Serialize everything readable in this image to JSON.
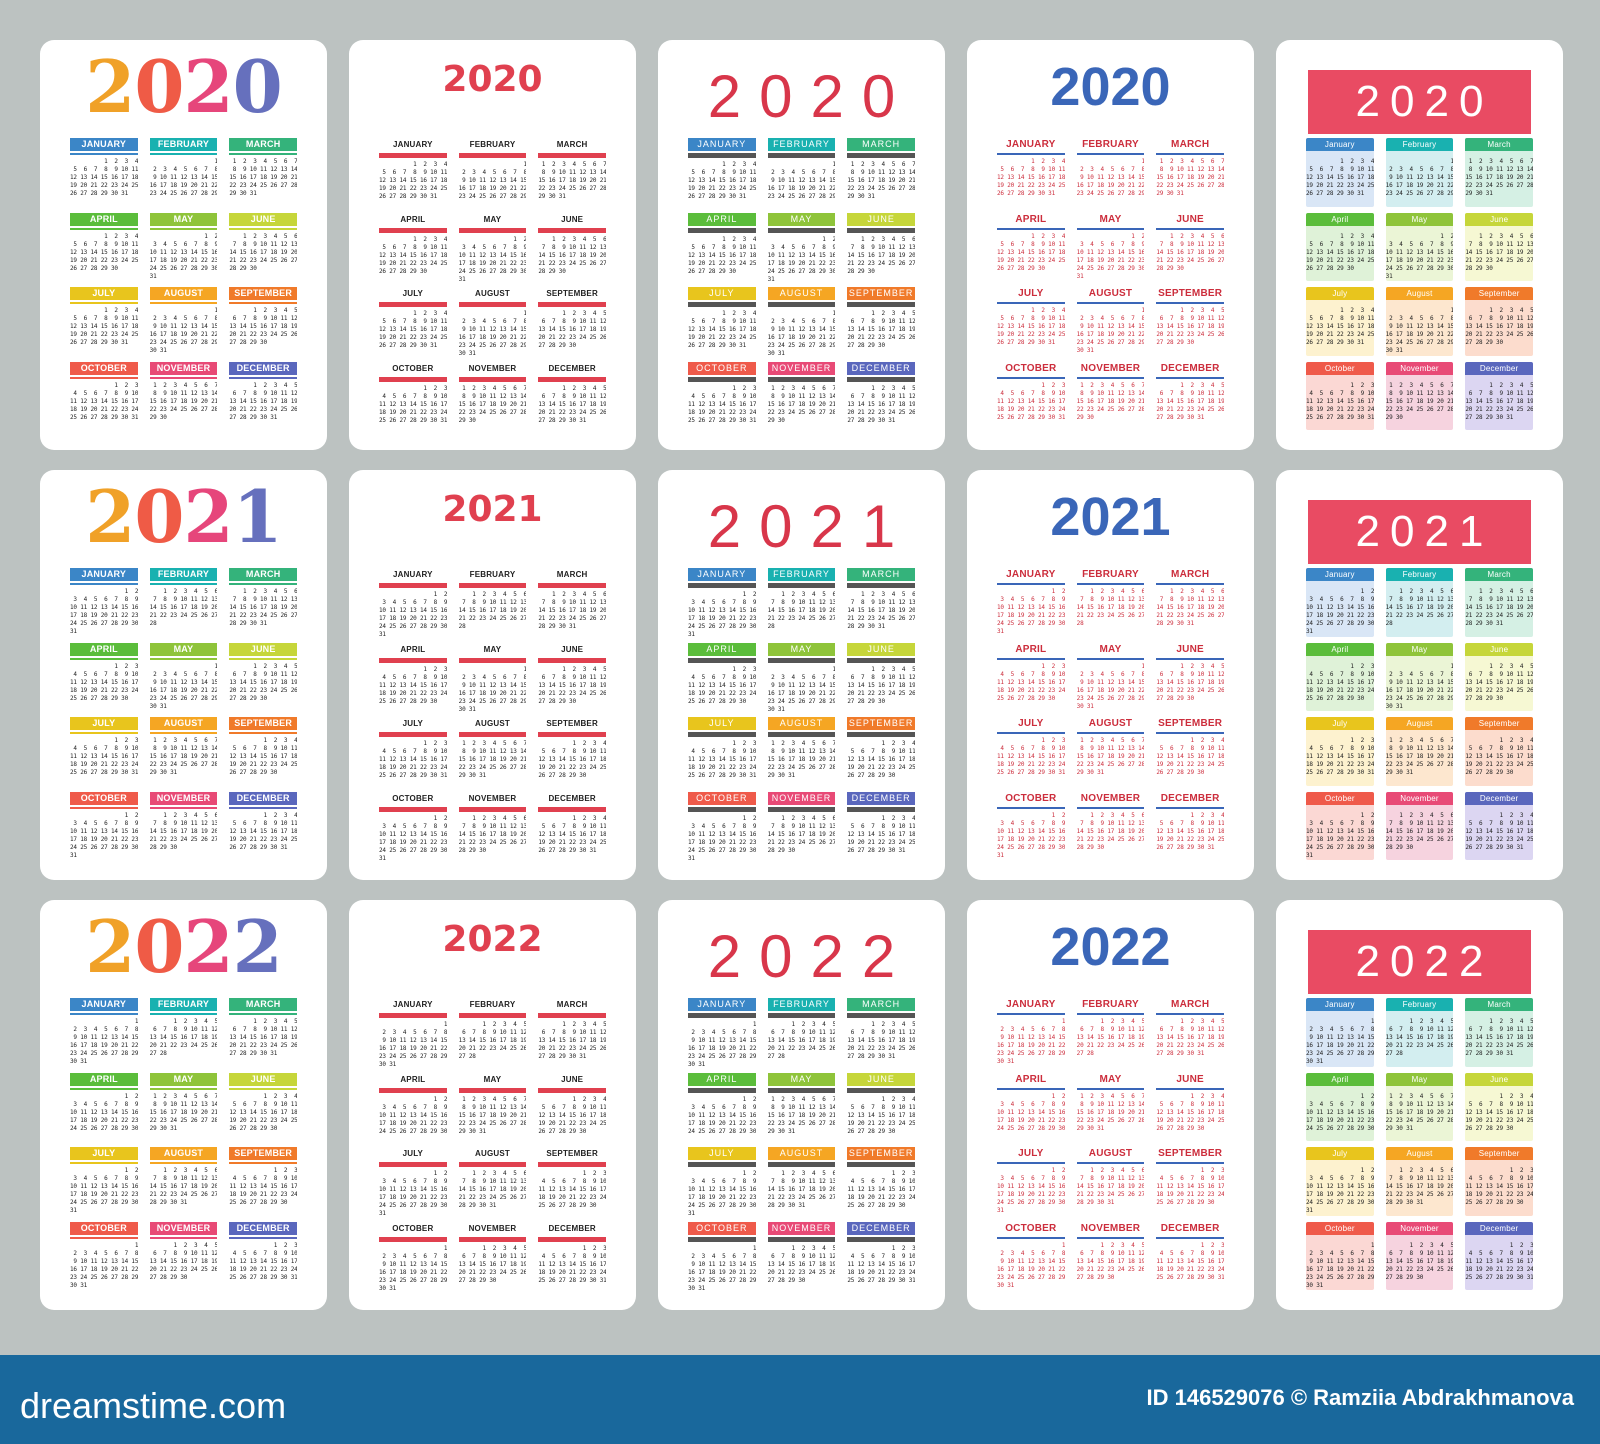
{
  "years": [
    "2020",
    "2021",
    "2022"
  ],
  "months": [
    "January",
    "February",
    "March",
    "April",
    "May",
    "June",
    "July",
    "August",
    "September",
    "October",
    "November",
    "December"
  ],
  "month_colors": [
    "#3b86c7",
    "#19b1b0",
    "#34b37b",
    "#5bbd3b",
    "#8fc43a",
    "#c6d63a",
    "#e8c51d",
    "#f5a623",
    "#f07a2a",
    "#ef5a4a",
    "#e84a76",
    "#5a67bd"
  ],
  "pastel_colors": [
    "#d9e6f6",
    "#d3eef0",
    "#d5f0e4",
    "#dff2d8",
    "#ebf5d6",
    "#f6f8d3",
    "#fdf2cf",
    "#fde7cf",
    "#fcdccd",
    "#fbd8d4",
    "#f6d3df",
    "#dcd6f2"
  ],
  "year_digit_colors": [
    "#f0a128",
    "#ef5b46",
    "#e6467b",
    "#6670bd"
  ],
  "footer": {
    "brand": "dreamstime.com",
    "credit": "ID 146529076 © Ramziia Abdrakhmanova"
  }
}
